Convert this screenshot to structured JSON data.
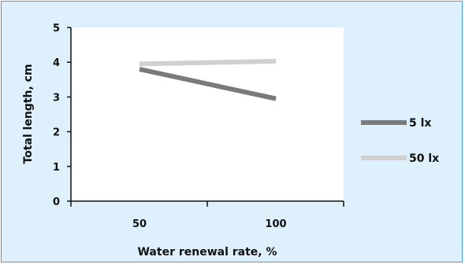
{
  "chart_data": {
    "type": "line",
    "title": "",
    "xlabel": "Water renewal rate, %",
    "ylabel": "Total length, cm",
    "categories": [
      "50",
      "100"
    ],
    "ylim": [
      0,
      5
    ],
    "yticks": [
      "0",
      "1",
      "2",
      "3",
      "4",
      "5"
    ],
    "grid": false,
    "legend_position": "right",
    "series": [
      {
        "name": "5 lx",
        "values": [
          3.8,
          2.95
        ],
        "color": "#7a7a7a"
      },
      {
        "name": "50 lx",
        "values": [
          3.95,
          4.03
        ],
        "color": "#d0d0d0"
      }
    ],
    "colors": {
      "background": "#ddf0fb",
      "plot_area": "#ffffff",
      "border": "#3aa0da"
    }
  }
}
